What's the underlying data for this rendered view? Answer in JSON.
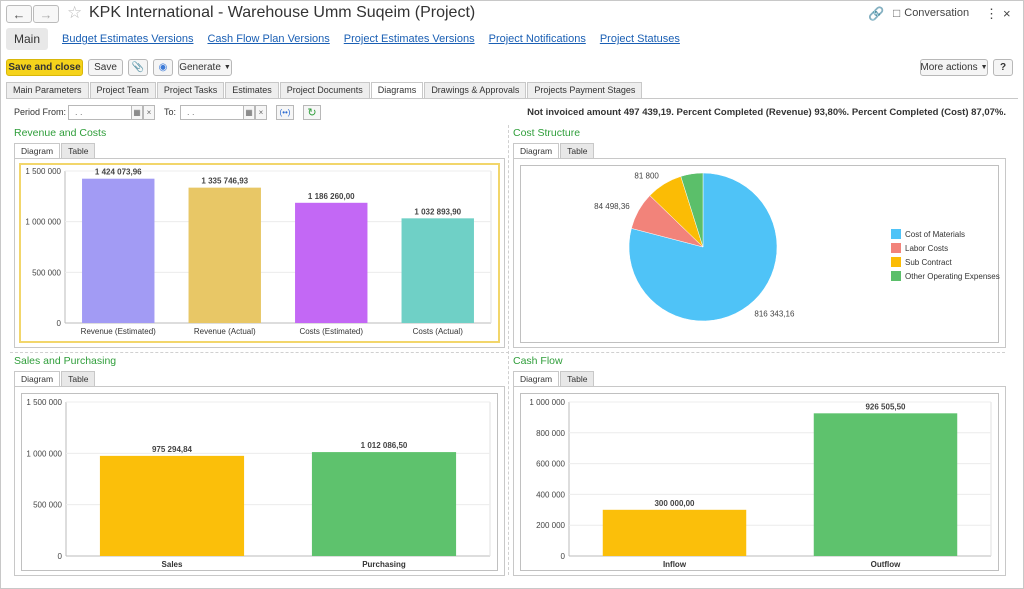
{
  "window": {
    "title": "KPK International - Warehouse Umm Suqeim (Project)",
    "conversation_label": "Conversation"
  },
  "topnav": {
    "main": "Main",
    "links": [
      "Budget Estimates Versions",
      "Cash Flow Plan Versions",
      "Project Estimates Versions",
      "Project Notifications",
      "Project Statuses"
    ]
  },
  "toolbar": {
    "save_close": "Save and close",
    "save": "Save",
    "generate": "Generate",
    "more_actions": "More actions",
    "help": "?"
  },
  "tabs": [
    "Main Parameters",
    "Project Team",
    "Project Tasks",
    "Estimates",
    "Project Documents",
    "Diagrams",
    "Drawings & Approvals",
    "Projects Payment Stages"
  ],
  "active_tab": "Diagrams",
  "period": {
    "from_label": "Period From:",
    "to_label": "To:",
    "from_value": " .  . ",
    "to_value": " .  . "
  },
  "info_text": "Not invoiced amount 497 439,19. Percent Completed (Revenue) 93,80%. Percent Completed (Cost) 87,07%.",
  "subtabs": {
    "diagram": "Diagram",
    "table": "Table"
  },
  "chart_data": [
    {
      "type": "bar",
      "title": "Revenue and Costs",
      "categories": [
        "Revenue (Estimated)",
        "Revenue (Actual)",
        "Costs (Estimated)",
        "Costs (Actual)"
      ],
      "values": [
        1424073.96,
        1335746.93,
        1186260.0,
        1032893.9
      ],
      "labels": [
        "1 424 073,96",
        "1 335 746,93",
        "1 186 260,00",
        "1 032 893,90"
      ],
      "colors": [
        "#a29bf4",
        "#e8c766",
        "#c368f5",
        "#6fd0c6"
      ],
      "yticks": [
        "0",
        "500 000",
        "1 000 000",
        "1 500 000"
      ],
      "ylim": [
        0,
        1500000
      ]
    },
    {
      "type": "pie",
      "title": "Cost Structure",
      "slices": [
        {
          "name": "Cost of Materials",
          "value": 816343.16,
          "label": "816 343,16",
          "color": "#4fc3f7"
        },
        {
          "name": "Labor Costs",
          "value": 84498.36,
          "label": "84 498,36",
          "color": "#f2837a"
        },
        {
          "name": "Sub Contract",
          "value": 81800,
          "label": "81 800",
          "color": "#fbbc05"
        },
        {
          "name": "Other Operating Expenses",
          "value": 50052.38,
          "label": "",
          "color": "#5bbf6a"
        }
      ],
      "legend_position": "right"
    },
    {
      "type": "bar",
      "title": "Sales and Purchasing",
      "categories": [
        "Sales",
        "Purchasing"
      ],
      "values": [
        975294.84,
        1012086.5
      ],
      "labels": [
        "975 294,84",
        "1 012 086,50"
      ],
      "colors": [
        "#fbbf0a",
        "#5ec26d"
      ],
      "yticks": [
        "0",
        "500 000",
        "1 000 000",
        "1 500 000"
      ],
      "ylim": [
        0,
        1500000
      ]
    },
    {
      "type": "bar",
      "title": "Cash Flow",
      "categories": [
        "Inflow",
        "Outflow"
      ],
      "values": [
        300000.0,
        926505.5
      ],
      "labels": [
        "300 000,00",
        "926 505,50"
      ],
      "colors": [
        "#fbbf0a",
        "#5ec26d"
      ],
      "yticks": [
        "0",
        "200 000",
        "400 000",
        "600 000",
        "800 000",
        "1 000 000"
      ],
      "ylim": [
        0,
        1000000
      ]
    }
  ]
}
